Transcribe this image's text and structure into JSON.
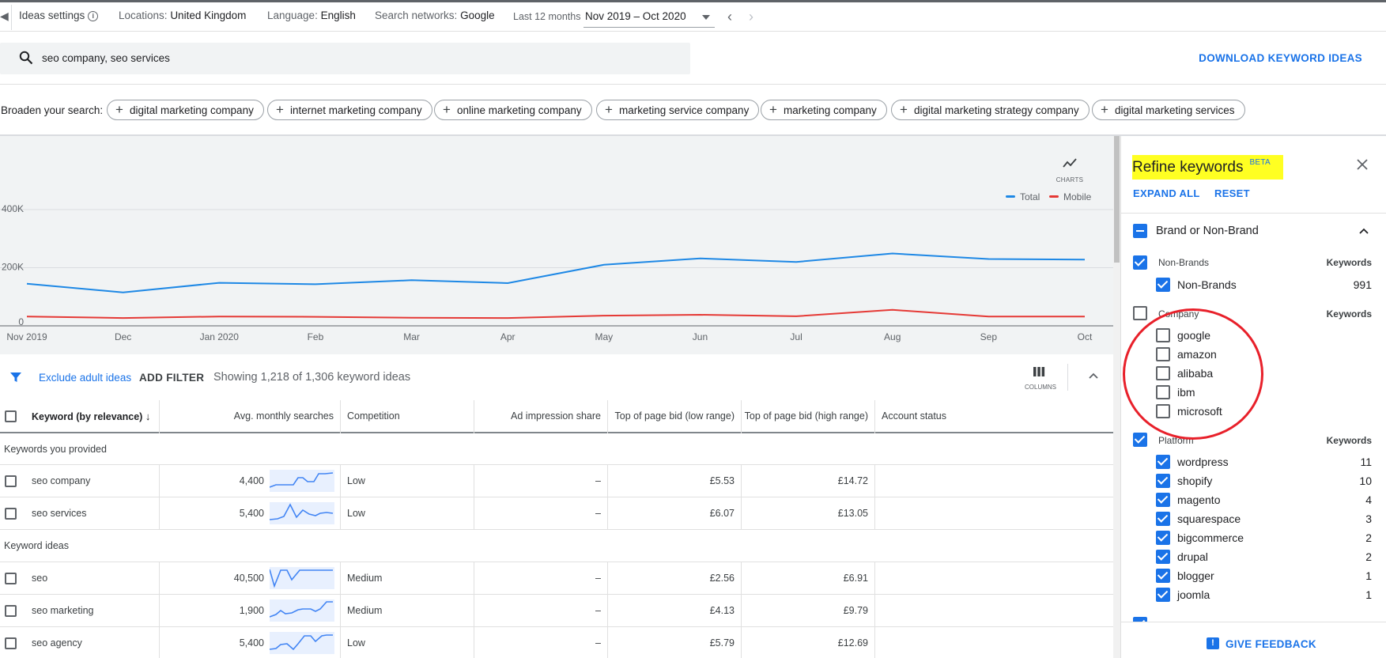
{
  "topbar": {
    "title": "Ideas settings",
    "locations_label": "Locations:",
    "locations_value": "United Kingdom",
    "language_label": "Language:",
    "language_value": "English",
    "networks_label": "Search networks:",
    "networks_value": "Google",
    "period_label": "Last 12 months",
    "date_range": "Nov 2019 – Oct 2020"
  },
  "search": {
    "query": "seo company, seo services",
    "download_label": "DOWNLOAD KEYWORD IDEAS"
  },
  "broaden": {
    "label": "Broaden your search:",
    "chips": [
      "digital marketing company",
      "internet marketing company",
      "online marketing company",
      "marketing service company",
      "marketing company",
      "digital marketing strategy company",
      "digital marketing services"
    ]
  },
  "chart_data": {
    "type": "line",
    "categories": [
      "Nov 2019",
      "Dec",
      "Jan 2020",
      "Feb",
      "Mar",
      "Apr",
      "May",
      "Jun",
      "Jul",
      "Aug",
      "Sep",
      "Oct"
    ],
    "ytick_labels": [
      "0",
      "200K",
      "400K"
    ],
    "ylim": [
      0,
      400000
    ],
    "series": [
      {
        "name": "Total",
        "color": "#1e88e5",
        "values": [
          145000,
          115000,
          148000,
          143000,
          157000,
          147000,
          210000,
          232000,
          220000,
          249000,
          230000,
          228000
        ]
      },
      {
        "name": "Mobile",
        "color": "#e53935",
        "values": [
          32000,
          27000,
          32000,
          31000,
          28000,
          27000,
          35000,
          38000,
          33000,
          55000,
          32000,
          32000
        ]
      }
    ],
    "toggle_label": "CHARTS"
  },
  "filter_bar": {
    "exclude_adult": "Exclude adult ideas",
    "add_filter": "ADD FILTER",
    "showing": "Showing 1,218 of 1,306 keyword ideas",
    "columns_label": "COLUMNS"
  },
  "table": {
    "headers": {
      "keyword": "Keyword (by relevance)",
      "avg": "Avg. monthly searches",
      "competition": "Competition",
      "ad_share": "Ad impression share",
      "bid_low": "Top of page bid (low range)",
      "bid_high": "Top of page bid (high range)",
      "account": "Account status"
    },
    "group_provided": "Keywords you provided",
    "group_ideas": "Keyword ideas",
    "provided": [
      {
        "keyword": "seo company",
        "avg": "4,400",
        "competition": "Low",
        "ad_share": "–",
        "bid_low": "£5.53",
        "bid_high": "£14.72"
      },
      {
        "keyword": "seo services",
        "avg": "5,400",
        "competition": "Low",
        "ad_share": "–",
        "bid_low": "£6.07",
        "bid_high": "£13.05"
      }
    ],
    "ideas": [
      {
        "keyword": "seo",
        "avg": "40,500",
        "competition": "Medium",
        "ad_share": "–",
        "bid_low": "£2.56",
        "bid_high": "£6.91"
      },
      {
        "keyword": "seo marketing",
        "avg": "1,900",
        "competition": "Medium",
        "ad_share": "–",
        "bid_low": "£4.13",
        "bid_high": "£9.79"
      },
      {
        "keyword": "seo agency",
        "avg": "5,400",
        "competition": "Low",
        "ad_share": "–",
        "bid_low": "£5.79",
        "bid_high": "£12.69"
      }
    ]
  },
  "refine": {
    "title": "Refine keywords",
    "beta": "BETA",
    "expand_all": "EXPAND ALL",
    "reset": "RESET",
    "section_title": "Brand or Non-Brand",
    "keywords_col": "Keywords",
    "non_brands_group": "Non-Brands",
    "non_brands_items": [
      {
        "label": "Non-Brands",
        "count": "991"
      }
    ],
    "company_group": "Company",
    "company_items": [
      "google",
      "amazon",
      "alibaba",
      "ibm",
      "microsoft"
    ],
    "platform_group": "Platform",
    "platform_items": [
      {
        "label": "wordpress",
        "count": "11"
      },
      {
        "label": "shopify",
        "count": "10"
      },
      {
        "label": "magento",
        "count": "4"
      },
      {
        "label": "squarespace",
        "count": "3"
      },
      {
        "label": "bigcommerce",
        "count": "2"
      },
      {
        "label": "drupal",
        "count": "2"
      },
      {
        "label": "blogger",
        "count": "1"
      },
      {
        "label": "joomla",
        "count": "1"
      }
    ],
    "feedback": "GIVE FEEDBACK"
  },
  "colors": {
    "accent": "#1a73e8",
    "highlight": "#ffff22",
    "annotation": "#e8202a"
  }
}
